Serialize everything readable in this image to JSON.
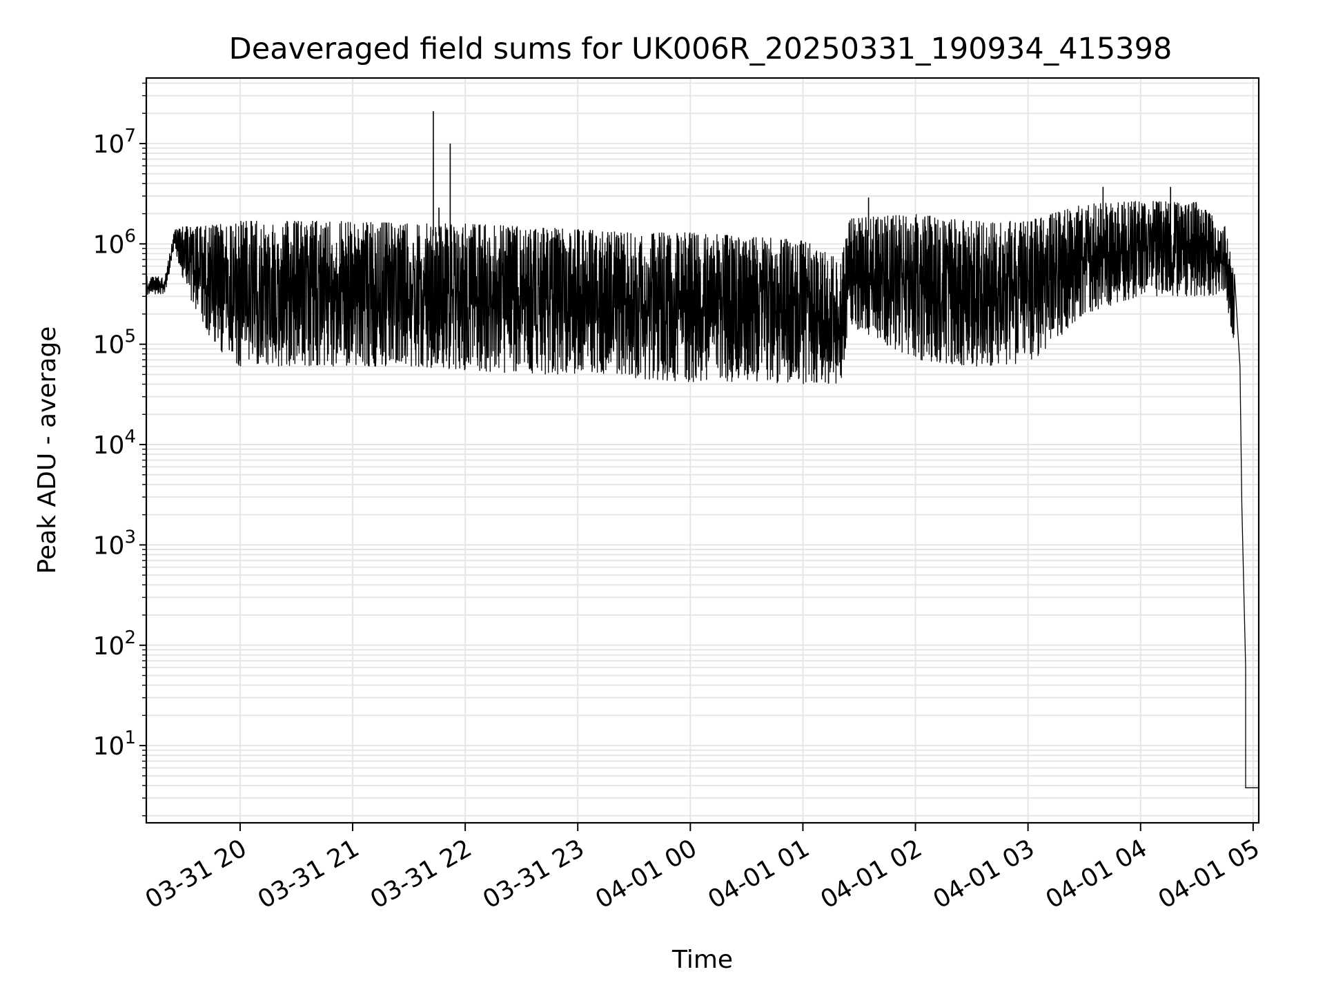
{
  "chart_data": {
    "type": "line",
    "title": "Deaveraged field sums for UK006R_20250331_190934_415398",
    "xlabel": "Time",
    "ylabel": "Peak ADU - average",
    "y_scale": "log",
    "ylim": [
      1.7,
      45000000
    ],
    "xlim": [
      "2025-03-31 19:10",
      "2025-04-01 05:03"
    ],
    "x_ticks": [
      {
        "t": "2025-03-31 20:00",
        "label": "03-31 20"
      },
      {
        "t": "2025-03-31 21:00",
        "label": "03-31 21"
      },
      {
        "t": "2025-03-31 22:00",
        "label": "03-31 22"
      },
      {
        "t": "2025-03-31 23:00",
        "label": "03-31 23"
      },
      {
        "t": "2025-04-01 00:00",
        "label": "04-01 00"
      },
      {
        "t": "2025-04-01 01:00",
        "label": "04-01 01"
      },
      {
        "t": "2025-04-01 02:00",
        "label": "04-01 02"
      },
      {
        "t": "2025-04-01 03:00",
        "label": "04-01 03"
      },
      {
        "t": "2025-04-01 04:00",
        "label": "04-01 04"
      },
      {
        "t": "2025-04-01 05:00",
        "label": "04-01 05"
      }
    ],
    "y_ticks": [
      {
        "value": 10,
        "base": "10",
        "exp": "1"
      },
      {
        "value": 100,
        "base": "10",
        "exp": "2"
      },
      {
        "value": 1000,
        "base": "10",
        "exp": "3"
      },
      {
        "value": 10000,
        "base": "10",
        "exp": "4"
      },
      {
        "value": 100000,
        "base": "10",
        "exp": "5"
      },
      {
        "value": 1000000,
        "base": "10",
        "exp": "6"
      },
      {
        "value": 10000000,
        "base": "10",
        "exp": "7"
      }
    ],
    "grid": true,
    "line_color": "#000000",
    "grid_color": "#e6e6e6",
    "envelope": [
      {
        "t": "2025-03-31 19:10",
        "low": 300000,
        "high": 480000
      },
      {
        "t": "2025-03-31 19:20",
        "low": 320000,
        "high": 470000
      },
      {
        "t": "2025-03-31 19:25",
        "low": 900000,
        "high": 1400000
      },
      {
        "t": "2025-03-31 19:30",
        "low": 400000,
        "high": 1500000
      },
      {
        "t": "2025-03-31 19:40",
        "low": 150000,
        "high": 1500000
      },
      {
        "t": "2025-03-31 19:50",
        "low": 80000,
        "high": 1600000
      },
      {
        "t": "2025-03-31 20:00",
        "low": 60000,
        "high": 1700000
      },
      {
        "t": "2025-03-31 20:30",
        "low": 60000,
        "high": 1700000
      },
      {
        "t": "2025-03-31 21:00",
        "low": 60000,
        "high": 1700000
      },
      {
        "t": "2025-03-31 21:30",
        "low": 60000,
        "high": 1600000
      },
      {
        "t": "2025-03-31 22:00",
        "low": 55000,
        "high": 1600000
      },
      {
        "t": "2025-03-31 22:30",
        "low": 50000,
        "high": 1500000
      },
      {
        "t": "2025-03-31 23:00",
        "low": 50000,
        "high": 1400000
      },
      {
        "t": "2025-03-31 23:30",
        "low": 45000,
        "high": 1300000
      },
      {
        "t": "2025-04-01 00:00",
        "low": 42000,
        "high": 1300000
      },
      {
        "t": "2025-04-01 00:30",
        "low": 42000,
        "high": 1200000
      },
      {
        "t": "2025-04-01 01:00",
        "low": 40000,
        "high": 1100000
      },
      {
        "t": "2025-04-01 01:20",
        "low": 40000,
        "high": 700000
      },
      {
        "t": "2025-04-01 01:25",
        "low": 150000,
        "high": 1800000
      },
      {
        "t": "2025-04-01 02:00",
        "low": 70000,
        "high": 2000000
      },
      {
        "t": "2025-04-01 02:30",
        "low": 60000,
        "high": 1700000
      },
      {
        "t": "2025-04-01 03:00",
        "low": 60000,
        "high": 1700000
      },
      {
        "t": "2025-04-01 03:30",
        "low": 200000,
        "high": 2500000
      },
      {
        "t": "2025-04-01 04:00",
        "low": 300000,
        "high": 2700000
      },
      {
        "t": "2025-04-01 04:30",
        "low": 300000,
        "high": 2600000
      },
      {
        "t": "2025-04-01 04:45",
        "low": 300000,
        "high": 1500000
      },
      {
        "t": "2025-04-01 04:50",
        "low": 100000,
        "high": 500000
      }
    ],
    "tail": [
      {
        "t": "2025-04-01 04:50",
        "y": 500000
      },
      {
        "t": "2025-04-01 04:53",
        "y": 60000
      },
      {
        "t": "2025-04-01 04:54",
        "y": 2500
      },
      {
        "t": "2025-04-01 04:56",
        "y": 60
      },
      {
        "t": "2025-04-01 04:56",
        "y": 3.8
      },
      {
        "t": "2025-04-01 05:03",
        "y": 3.8
      }
    ],
    "spikes": [
      {
        "t": "2025-03-31 21:43",
        "y": 21000000
      },
      {
        "t": "2025-03-31 21:52",
        "y": 10000000
      },
      {
        "t": "2025-03-31 21:46",
        "y": 2300000
      },
      {
        "t": "2025-04-01 03:40",
        "y": 3700000
      },
      {
        "t": "2025-04-01 04:16",
        "y": 3700000
      },
      {
        "t": "2025-04-01 01:35",
        "y": 2900000
      }
    ]
  }
}
